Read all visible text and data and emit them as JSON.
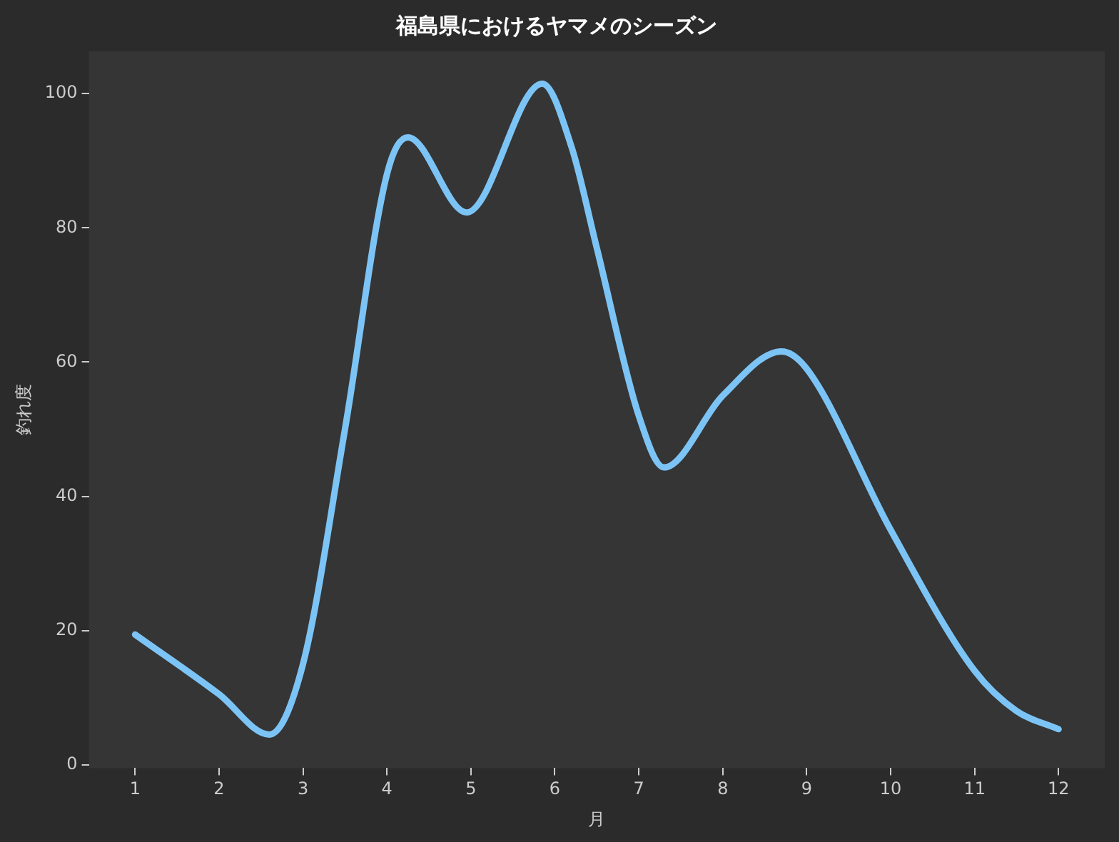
{
  "chart_data": {
    "type": "line",
    "title": "福島県におけるヤマメのシーズン",
    "xlabel": "月",
    "ylabel": "釣れ度",
    "x": [
      1,
      2,
      2.6,
      3,
      3.5,
      4,
      4.25,
      4.95,
      5.85,
      6.2,
      6.5,
      7,
      7.3,
      8,
      8.7,
      9,
      10,
      11,
      11.5,
      12
    ],
    "series": [
      {
        "color": "#7cc4f5",
        "values": [
          19.4,
          10.5,
          4.5,
          15,
          50,
          88,
          93.5,
          82.3,
          101.5,
          92,
          77,
          52,
          44.3,
          55,
          61.6,
          59,
          35,
          14,
          8,
          5.3
        ]
      }
    ],
    "xlim": [
      0.45,
      12.55
    ],
    "xticks": [
      1,
      2,
      3,
      4,
      5,
      6,
      7,
      8,
      9,
      10,
      11,
      12
    ],
    "ylim": [
      -0.5,
      106.3
    ],
    "yticks": [
      0,
      20,
      40,
      60,
      80,
      100
    ],
    "grid": false,
    "legend": false,
    "marker": "none",
    "line_style": "solid"
  }
}
